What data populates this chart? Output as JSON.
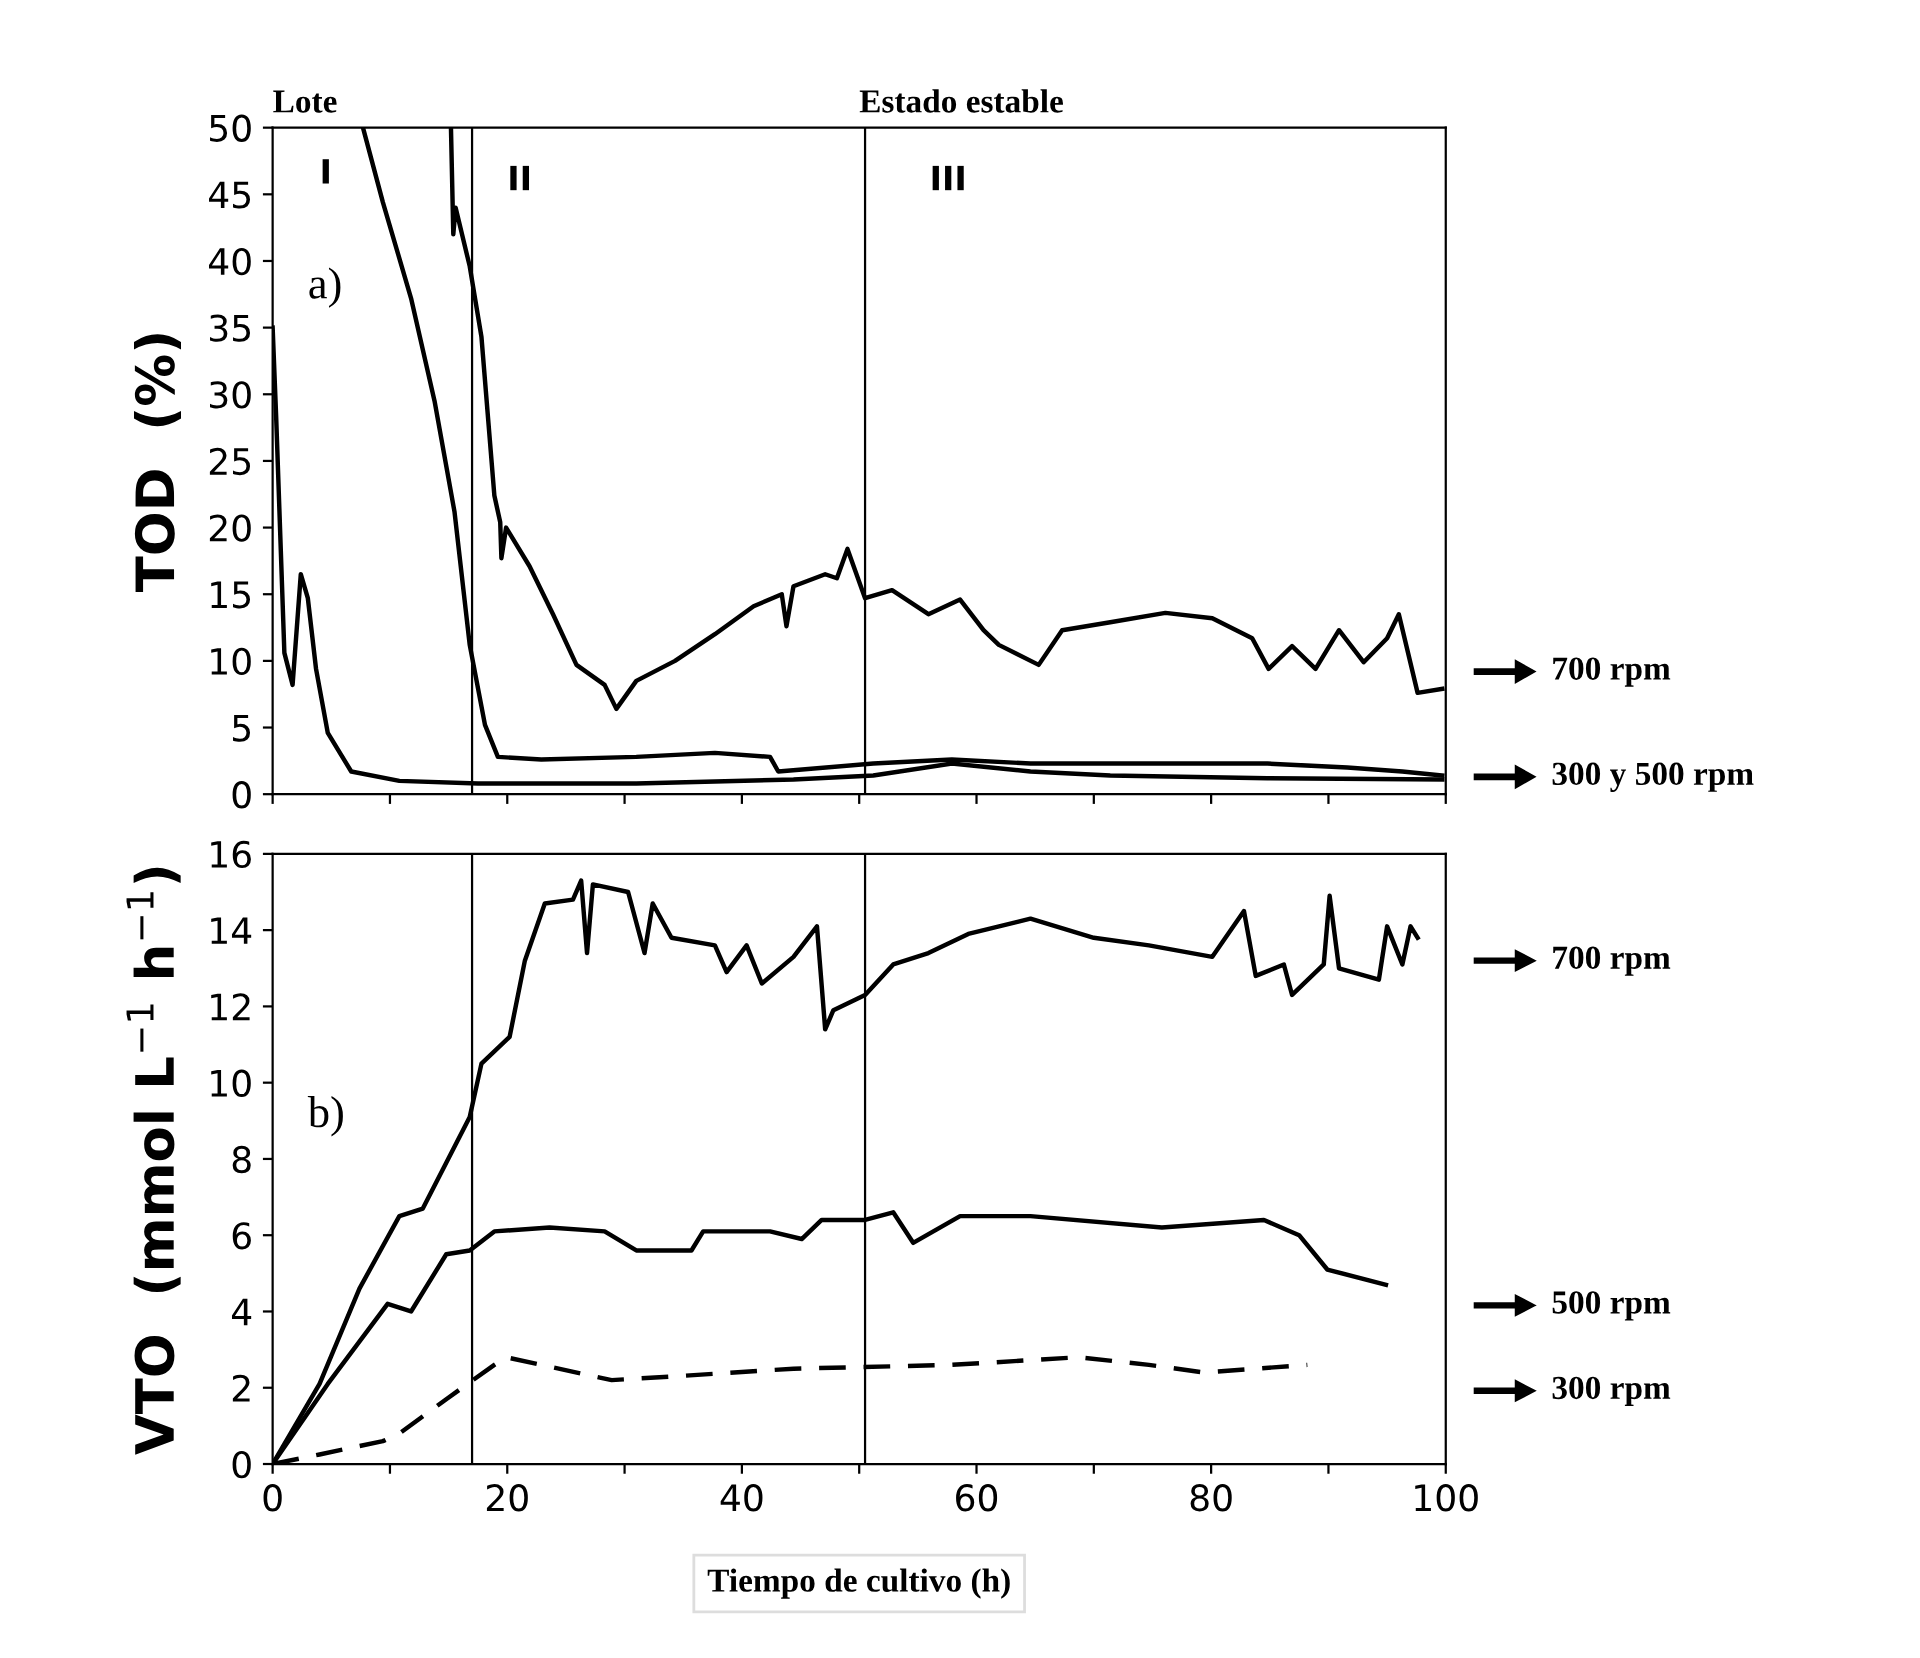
{
  "chart_data": [
    {
      "type": "line",
      "ylabel": "TOD  (%)",
      "xlim": [
        0,
        100
      ],
      "ylim": [
        0,
        50
      ],
      "xticks": [
        0,
        {
          "value": 10,
          "label": null
        },
        20,
        {
          "value": 30,
          "label": null
        },
        40,
        {
          "value": 50,
          "label": null
        },
        60,
        {
          "value": 70,
          "label": null
        },
        80,
        {
          "value": 90,
          "label": null
        },
        100
      ],
      "yticks": [
        0,
        5,
        10,
        15,
        20,
        25,
        30,
        35,
        40,
        45,
        50
      ],
      "tick_labels": "y",
      "grid": false,
      "series": [
        {
          "color": "#000000",
          "x": [
            15.2,
            15.4,
            15.6,
            16.8,
            17.8,
            18.9,
            19.4,
            19.5,
            19.9,
            21.9,
            23.9,
            25.9,
            28.3,
            29.3,
            31,
            34.3,
            37.7,
            41,
            43.4,
            43.8,
            44.4,
            47.1,
            48.1,
            49,
            50.5,
            52.8,
            55.9,
            58.6,
            60.6,
            61.9,
            65.3,
            67.3,
            71.4,
            76.1,
            80.1,
            83.5,
            84.9,
            86.9,
            88.9,
            90.9,
            93,
            95,
            96,
            97.6,
            99.7
          ],
          "values": [
            50,
            42,
            44,
            39.6,
            34.3,
            22.4,
            20.4,
            17.7,
            20,
            17.1,
            13.5,
            9.7,
            8.2,
            6.4,
            8.5,
            10,
            12,
            14.1,
            15,
            12.6,
            15.6,
            16.5,
            16.2,
            18.4,
            14.7,
            15.3,
            13.5,
            14.6,
            12.3,
            11.2,
            9.7,
            12.3,
            12.9,
            13.6,
            13.2,
            11.7,
            9.4,
            11.1,
            9.4,
            12.3,
            9.9,
            11.7,
            13.5,
            7.6,
            7.9
          ]
        },
        {
          "color": "#000000",
          "x": [
            7.7,
            9.4,
            11.8,
            13.8,
            15.5,
            16.8,
            18.1,
            19.2,
            22.9,
            31,
            37.7,
            42.4,
            43.1,
            51.2,
            57.9,
            64.6,
            71.4,
            78.1,
            84.8,
            91.6,
            96.3,
            99.7
          ],
          "values": [
            50,
            44.4,
            37.2,
            29.5,
            21.2,
            11.2,
            5.2,
            2.8,
            2.6,
            2.8,
            3.1,
            2.8,
            1.7,
            2.3,
            2.6,
            2.3,
            2.3,
            2.3,
            2.3,
            2,
            1.7,
            1.4
          ]
        },
        {
          "color": "#000000",
          "x": [
            0,
            0.3,
            1,
            1.7,
            2.4,
            3,
            3.7,
            4.7,
            6.7,
            10.8,
            17.5,
            31,
            44.4,
            51.2,
            57.9,
            64.6,
            71.4,
            84.8,
            99.7
          ],
          "values": [
            35,
            28.3,
            10.6,
            8.2,
            16.5,
            14.7,
            9.4,
            4.6,
            1.7,
            1,
            0.8,
            0.8,
            1.1,
            1.4,
            2.3,
            1.7,
            1.4,
            1.2,
            1.1
          ]
        }
      ],
      "ref_lines": [
        {
          "axis": "x",
          "value": 17,
          "color": "#000000"
        },
        {
          "axis": "x",
          "value": 50.5,
          "color": "#000000"
        }
      ],
      "annotations": [
        "Lote",
        "Estado estable",
        "I",
        "II",
        "III",
        "a)",
        "700 rpm",
        "300 y 500 rpm"
      ]
    },
    {
      "type": "line",
      "xlabel": "Tiempo de cultivo (h)",
      "ylabel": "VTO  (mmol L$^{−1}$ h$^{−1}$)",
      "xlim": [
        0,
        100
      ],
      "ylim": [
        0,
        16
      ],
      "xticks": [
        0,
        {
          "value": 10,
          "label": null
        },
        20,
        {
          "value": 30,
          "label": null
        },
        40,
        {
          "value": 50,
          "label": null
        },
        60,
        {
          "value": 70,
          "label": null
        },
        80,
        {
          "value": 90,
          "label": null
        },
        100
      ],
      "yticks": [
        0,
        2,
        4,
        6,
        8,
        10,
        12,
        14,
        16
      ],
      "grid": false,
      "series": [
        {
          "color": "#000000",
          "x": [
            0,
            4,
            7.4,
            10.8,
            12.8,
            14.8,
            16.8,
            17.8,
            20.2,
            21.5,
            23.2,
            25.6,
            26.3,
            26.8,
            27.3,
            30.3,
            31.7,
            32.4,
            34,
            37.7,
            38.7,
            40.4,
            41.7,
            44.4,
            46.4,
            47.1,
            47.8,
            50.5,
            52.9,
            55.9,
            59.3,
            64.6,
            70,
            74.7,
            80.1,
            82.8,
            83.8,
            86.2,
            86.9,
            89.6,
            90.1,
            90.9,
            94.3,
            95,
            96.3,
            97,
            97.6
          ],
          "values": [
            0,
            2.1,
            4.6,
            6.5,
            6.7,
            7.9,
            9.1,
            10.5,
            11.2,
            13.2,
            14.7,
            14.8,
            15.3,
            13.4,
            15.2,
            15,
            13.4,
            14.7,
            13.8,
            13.6,
            12.9,
            13.6,
            12.6,
            13.3,
            14.1,
            11.4,
            11.9,
            12.3,
            13.1,
            13.4,
            13.9,
            14.3,
            13.8,
            13.6,
            13.3,
            14.5,
            12.8,
            13.1,
            12.3,
            13.1,
            14.9,
            13,
            12.7,
            14.1,
            13.1,
            14.1,
            13.8
          ]
        },
        {
          "color": "#000000",
          "x": [
            0,
            4.7,
            9.8,
            11.8,
            14.8,
            16.8,
            18.9,
            23.6,
            28.3,
            31,
            35.7,
            36.7,
            42.4,
            45.1,
            46.8,
            50.5,
            52.9,
            54.6,
            58.6,
            64.6,
            75.8,
            84.5,
            87.5,
            89.9,
            94.9
          ],
          "values": [
            0,
            2.1,
            4.2,
            4,
            5.5,
            5.6,
            6.1,
            6.2,
            6.1,
            5.6,
            5.6,
            6.1,
            6.1,
            5.9,
            6.4,
            6.4,
            6.6,
            5.8,
            6.5,
            6.5,
            6.2,
            6.4,
            6,
            5.1,
            4.7
          ]
        },
        {
          "color": "#000000",
          "line_style": "dashed",
          "x": [
            0,
            4,
            9.4,
            10.8,
            14.8,
            18.9,
            19.9,
            28.9,
            34.3,
            44.4,
            57.9,
            68.7,
            74.7,
            79.4,
            88.2
          ],
          "values": [
            0,
            0.25,
            0.6,
            0.8,
            1.7,
            2.6,
            2.8,
            2.2,
            2.3,
            2.5,
            2.6,
            2.8,
            2.6,
            2.4,
            2.6
          ]
        }
      ],
      "ref_lines": [
        {
          "axis": "x",
          "value": 17,
          "color": "#000000"
        },
        {
          "axis": "x",
          "value": 50.5,
          "color": "#000000"
        }
      ],
      "annotations": [
        "b)",
        "700 rpm",
        "500 rpm",
        "300 rpm"
      ]
    }
  ]
}
